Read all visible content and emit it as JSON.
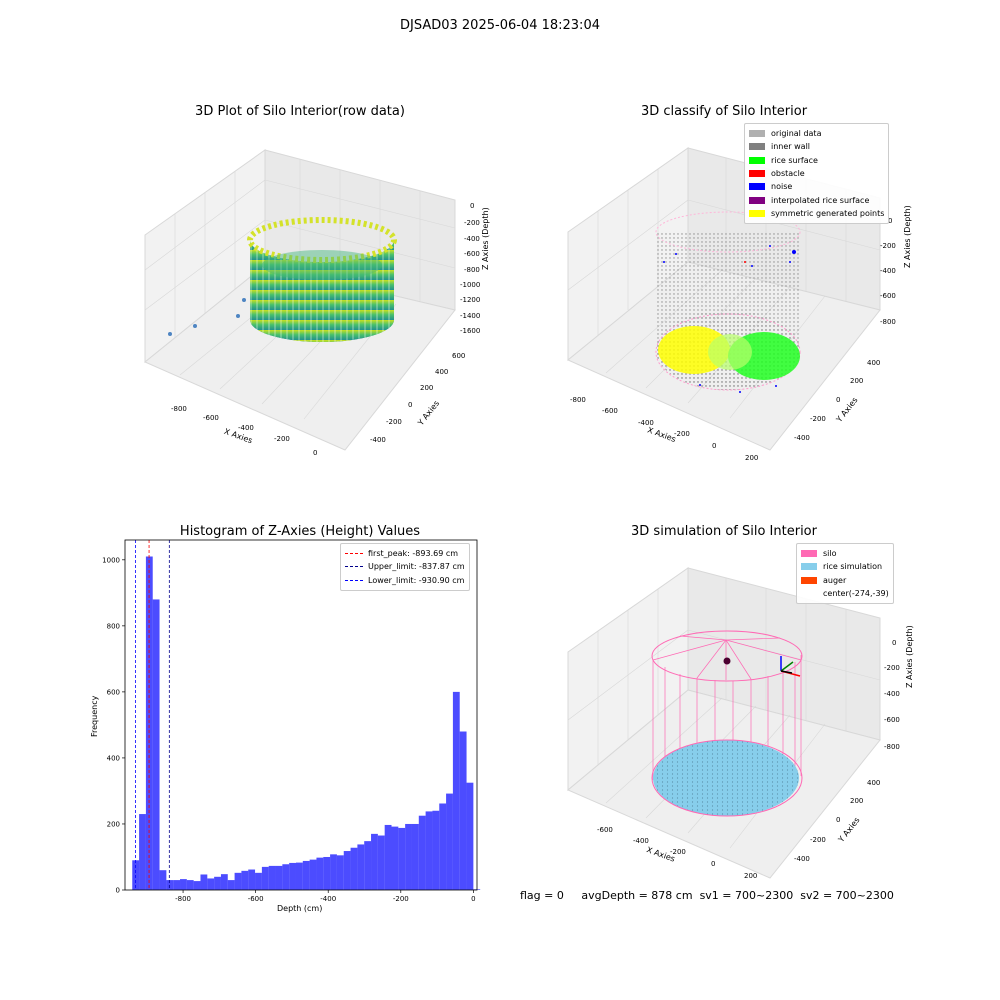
{
  "suptitle": "DJSAD03 2025-06-04 18:23:04",
  "panels": {
    "raw": {
      "title": "3D Plot of Silo Interior(row data)",
      "xlabel": "X Axies",
      "ylabel": "Y Axies",
      "zlabel": "Z Axies (Depth)",
      "xticks": [
        "-800",
        "-600",
        "-400",
        "-200",
        "0"
      ],
      "yticks": [
        "600",
        "400",
        "200",
        "0",
        "-200",
        "-400"
      ],
      "zticks": [
        "0",
        "-200",
        "-400",
        "-600",
        "-800",
        "-1000",
        "-1200",
        "-1400",
        "-1600"
      ]
    },
    "classify": {
      "title": "3D classify of Silo Interior",
      "xlabel": "X Axies",
      "ylabel": "Y Axies",
      "zlabel": "Z Axies (Depth)",
      "xticks": [
        "-800",
        "-600",
        "-400",
        "-200",
        "0",
        "200"
      ],
      "yticks": [
        "400",
        "200",
        "0",
        "-200",
        "-400"
      ],
      "zticks": [
        "0",
        "-200",
        "-400",
        "-600",
        "-800"
      ],
      "legend": [
        {
          "label": "original data",
          "color": "#b0b0b0"
        },
        {
          "label": "inner wall",
          "color": "#808080"
        },
        {
          "label": "rice surface",
          "color": "#00ff00"
        },
        {
          "label": "obstacle",
          "color": "#ff0000"
        },
        {
          "label": "noise",
          "color": "#0000ff"
        },
        {
          "label": "interpolated rice surface",
          "color": "#800080"
        },
        {
          "label": "symmetric generated points",
          "color": "#ffff00"
        }
      ]
    },
    "simulation": {
      "title": "3D simulation of Silo Interior",
      "xlabel": "X Axies",
      "ylabel": "Y Axies",
      "zlabel": "Z Axies (Depth)",
      "xticks": [
        "-600",
        "-400",
        "-200",
        "0",
        "200"
      ],
      "yticks": [
        "400",
        "200",
        "0",
        "-200",
        "-400"
      ],
      "zticks": [
        "0",
        "-200",
        "-400",
        "-600",
        "-800"
      ],
      "legend": [
        {
          "label": "silo",
          "color": "#ff69b4"
        },
        {
          "label": "rice simulation",
          "color": "#87ceeb"
        },
        {
          "label": "auger",
          "color": "#ff4500"
        },
        {
          "label": "center(-274,-39)",
          "color": ""
        }
      ]
    }
  },
  "chart_data": {
    "type": "bar",
    "title": "Histogram of Z-Axies (Height) Values",
    "xlabel": "Depth (cm)",
    "ylabel": "Frequency",
    "xlim": [
      -960,
      10
    ],
    "ylim": [
      0,
      1060
    ],
    "xticks": [
      -800,
      -600,
      -400,
      -200,
      0
    ],
    "yticks": [
      0,
      200,
      400,
      600,
      800,
      1000
    ],
    "bar_color": "#0000ff",
    "bin_start": -940,
    "bin_width": 18.8,
    "values": [
      90,
      230,
      1010,
      880,
      60,
      30,
      30,
      33,
      30,
      27,
      47,
      35,
      40,
      48,
      30,
      52,
      58,
      62,
      52,
      70,
      73,
      73,
      78,
      82,
      83,
      88,
      92,
      98,
      100,
      108,
      105,
      118,
      128,
      138,
      148,
      170,
      165,
      197,
      192,
      188,
      200,
      200,
      225,
      238,
      240,
      262,
      292,
      600,
      480,
      325,
      2
    ],
    "vlines": [
      {
        "label": "first_peak: -893.69 cm",
        "x": -893.69,
        "color": "#ff0000"
      },
      {
        "label": "Upper_limit: -837.87 cm",
        "x": -837.87,
        "color": "#00008b"
      },
      {
        "label": "Lower_limit: -930.90 cm",
        "x": -930.9,
        "color": "#0000ff"
      }
    ]
  },
  "footer": {
    "flag": "flag = 0",
    "avg": "avgDepth = 878 cm",
    "sv1": "sv1 = 700~2300",
    "sv2": "sv2 = 700~2300"
  }
}
